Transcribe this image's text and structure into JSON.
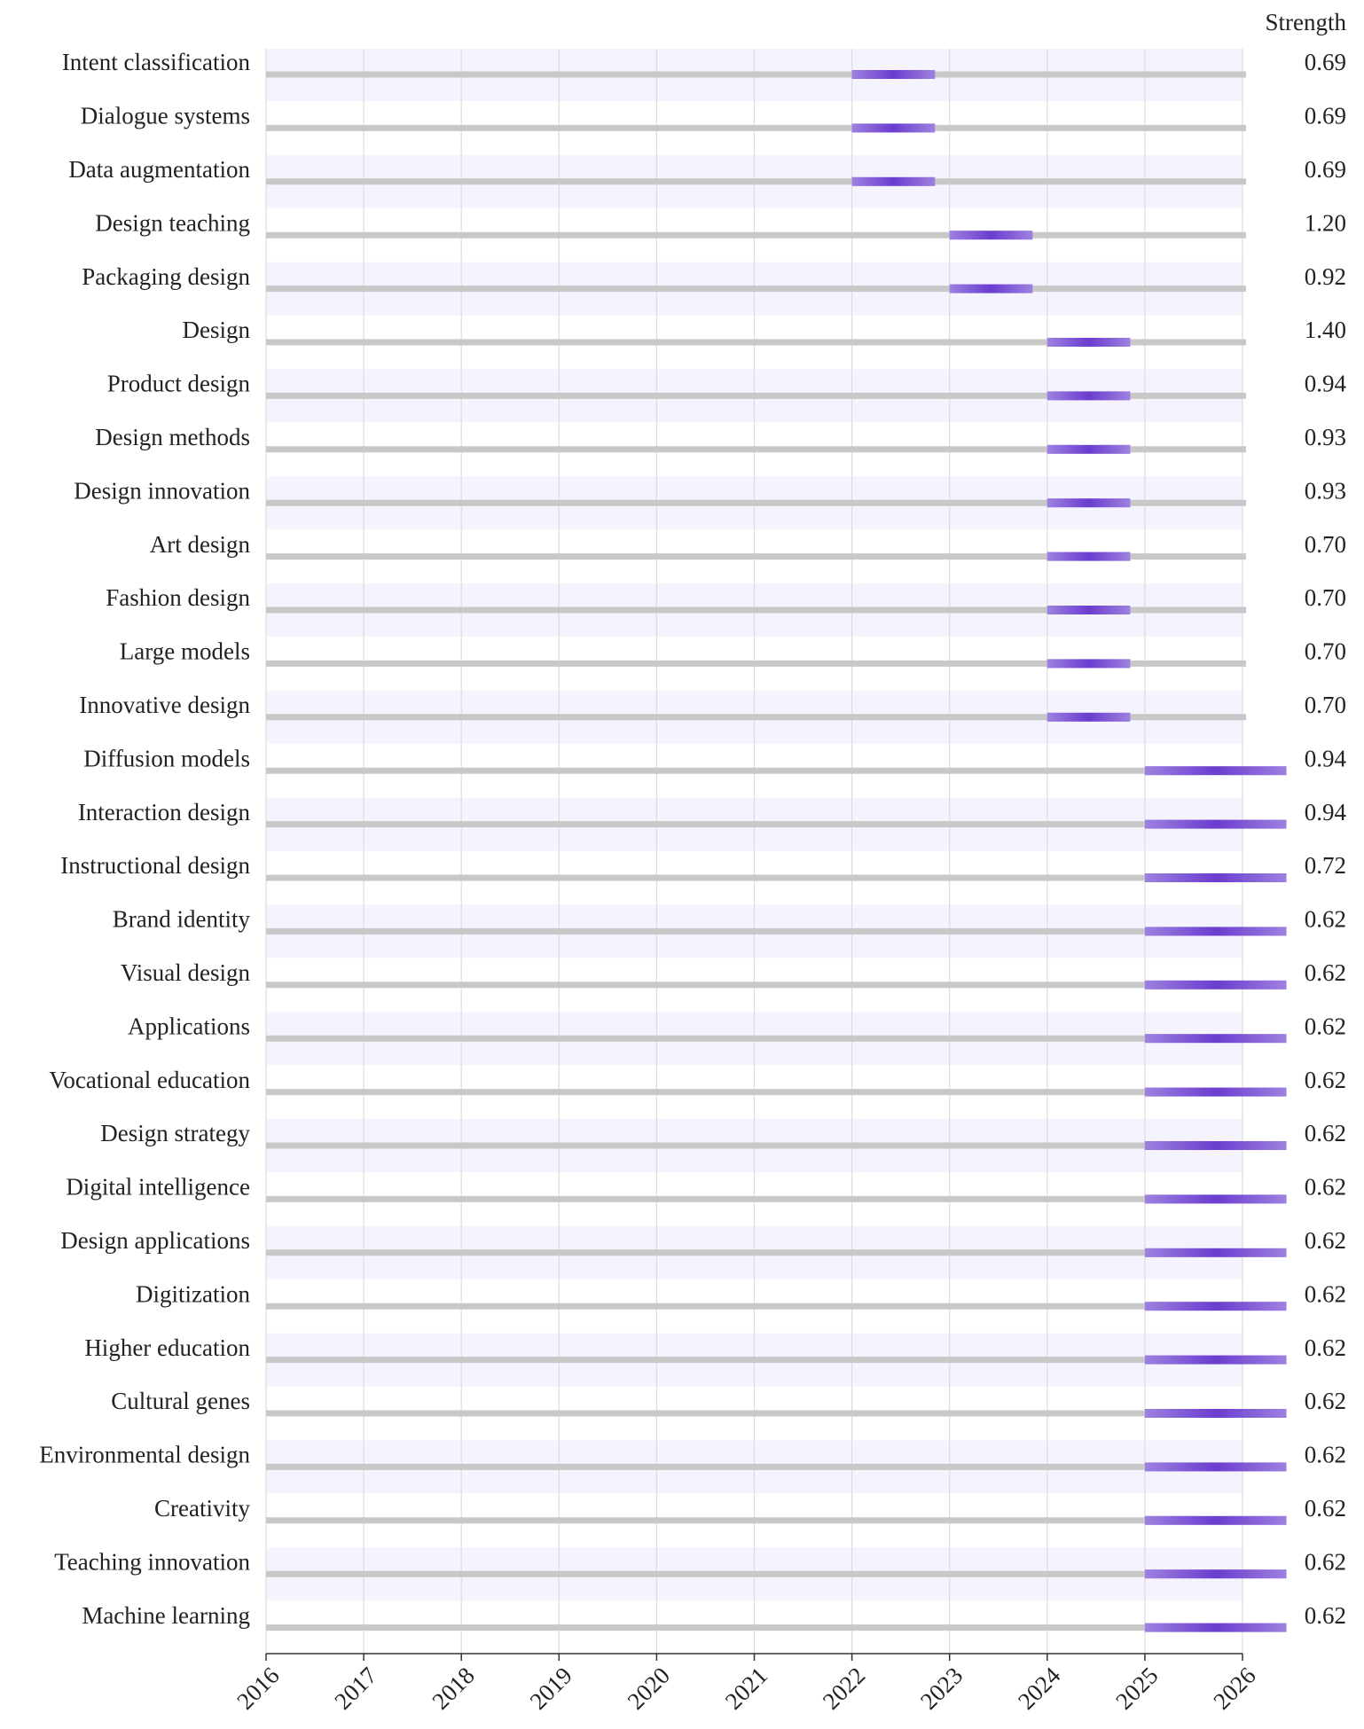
{
  "chart_data": {
    "type": "burst",
    "strength_label": "Strength",
    "categories": [
      "Intent classification",
      "Dialogue systems",
      "Data augmentation",
      "Design teaching",
      "Packaging design",
      "Design",
      "Product design",
      "Design methods",
      "Design innovation",
      "Art design",
      "Fashion design",
      "Large models",
      "Innovative design",
      "Diffusion models",
      "Interaction design",
      "Instructional design",
      "Brand identity",
      "Visual design",
      "Applications",
      "Vocational education",
      "Design strategy",
      "Digital intelligence",
      "Design applications",
      "Digitization",
      "Higher education",
      "Cultural genes",
      "Environmental design",
      "Creativity",
      "Teaching innovation",
      "Machine learning"
    ],
    "values": [
      0.69,
      0.69,
      0.69,
      1.2,
      0.92,
      1.4,
      0.94,
      0.93,
      0.93,
      0.7,
      0.7,
      0.7,
      0.7,
      0.94,
      0.94,
      0.72,
      0.62,
      0.62,
      0.62,
      0.62,
      0.62,
      0.62,
      0.62,
      0.62,
      0.62,
      0.62,
      0.62,
      0.62,
      0.62,
      0.62
    ],
    "value_labels": [
      "0.69",
      "0.69",
      "0.69",
      "1.20",
      "0.92",
      "1.40",
      "0.94",
      "0.93",
      "0.93",
      "0.70",
      "0.70",
      "0.70",
      "0.70",
      "0.94",
      "0.94",
      "0.72",
      "0.62",
      "0.62",
      "0.62",
      "0.62",
      "0.62",
      "0.62",
      "0.62",
      "0.62",
      "0.62",
      "0.62",
      "0.62",
      "0.62",
      "0.62",
      "0.62"
    ],
    "begin": [
      2022,
      2022,
      2022,
      2023,
      2023,
      2024,
      2024,
      2024,
      2024,
      2024,
      2024,
      2024,
      2024,
      2025,
      2025,
      2025,
      2025,
      2025,
      2025,
      2025,
      2025,
      2025,
      2025,
      2025,
      2025,
      2025,
      2025,
      2025,
      2025,
      2025
    ],
    "end": [
      2022.85,
      2022.85,
      2022.85,
      2023.85,
      2023.85,
      2024.85,
      2024.85,
      2024.85,
      2024.85,
      2024.85,
      2024.85,
      2024.85,
      2024.85,
      2026.45,
      2026.45,
      2026.45,
      2026.45,
      2026.45,
      2026.45,
      2026.45,
      2026.45,
      2026.45,
      2026.45,
      2026.45,
      2026.45,
      2026.45,
      2026.45,
      2026.45,
      2026.45,
      2026.45
    ],
    "xlim": [
      2016,
      2026
    ],
    "xticks": [
      2016,
      2017,
      2018,
      2019,
      2020,
      2021,
      2022,
      2023,
      2024,
      2025,
      2026
    ],
    "burst_color": "#6a3dcf",
    "line_color": "#c8c8c8",
    "band_color": "#f5f3fd",
    "grid": true
  }
}
